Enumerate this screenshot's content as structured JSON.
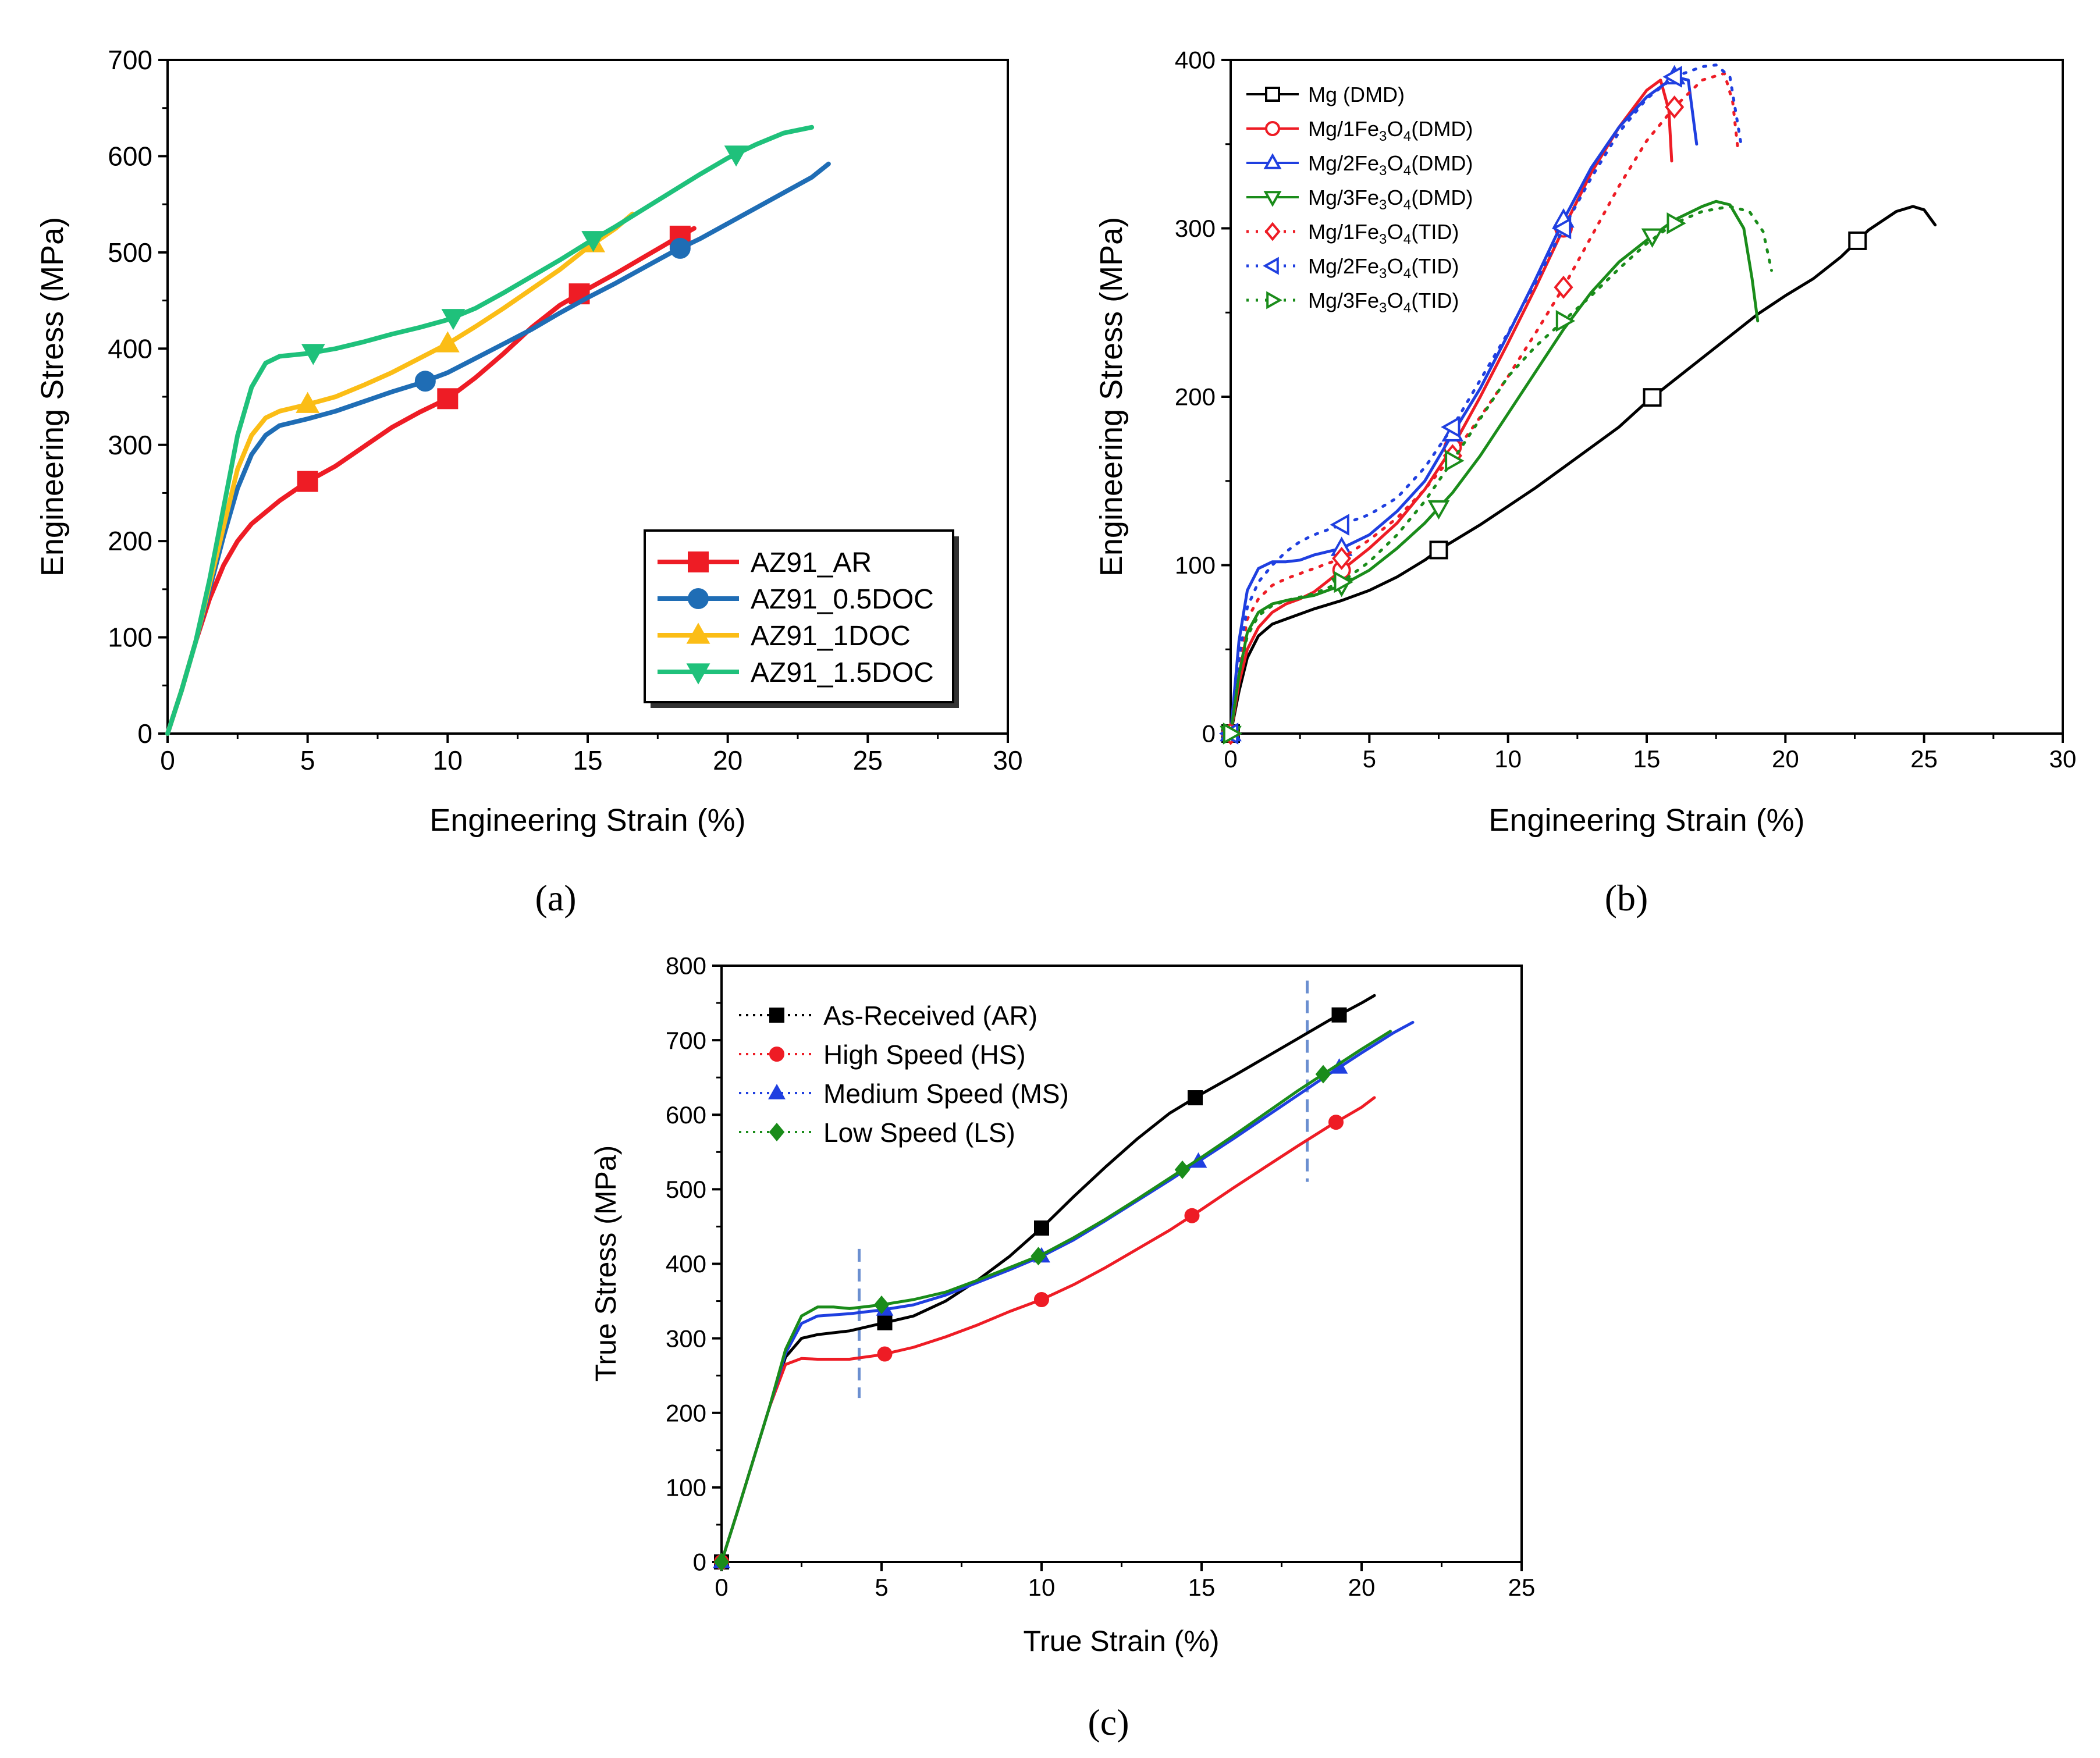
{
  "figure": {
    "panels": [
      {
        "label": "(a)"
      },
      {
        "label": "(b)"
      },
      {
        "label": "(c)"
      }
    ]
  },
  "chart_data": [
    {
      "id": "a",
      "type": "line",
      "xlabel": "Engineering Strain (%)",
      "ylabel": "Engineering Stress (MPa)",
      "xlim": [
        0,
        30
      ],
      "ylim": [
        0,
        700
      ],
      "xticks": [
        0,
        5,
        10,
        15,
        20,
        25,
        30
      ],
      "yticks": [
        0,
        100,
        200,
        300,
        400,
        500,
        600,
        700
      ],
      "legend_position": "bottom-right",
      "grid": false,
      "series": [
        {
          "name": "AZ91_AR",
          "color": "#ee1c25",
          "marker": "square",
          "x": [
            0,
            0.5,
            1,
            1.5,
            2,
            2.5,
            3,
            4,
            5,
            6,
            7,
            8,
            9,
            10,
            11,
            12,
            13,
            14,
            15,
            16,
            17,
            18,
            18.8
          ],
          "y": [
            0,
            45,
            95,
            140,
            175,
            200,
            218,
            242,
            262,
            278,
            298,
            318,
            334,
            348,
            370,
            395,
            422,
            445,
            462,
            478,
            495,
            512,
            525
          ],
          "markers_x": [
            5,
            10,
            14.7,
            18.3
          ]
        },
        {
          "name": "AZ91_0.5DOC",
          "color": "#1f6db5",
          "marker": "circle",
          "x": [
            0,
            0.5,
            1,
            1.5,
            2,
            2.5,
            3,
            3.5,
            4,
            5,
            6,
            7,
            8,
            9,
            10,
            11,
            12,
            13,
            14,
            15,
            16,
            17,
            18,
            19,
            20,
            21,
            22,
            23,
            23.6
          ],
          "y": [
            0,
            45,
            95,
            150,
            205,
            255,
            290,
            310,
            320,
            327,
            335,
            345,
            355,
            364,
            375,
            390,
            405,
            420,
            437,
            453,
            468,
            484,
            500,
            514,
            530,
            546,
            562,
            578,
            592
          ],
          "markers_x": [
            9.2,
            18.3
          ]
        },
        {
          "name": "AZ91_1DOC",
          "color": "#fbbd16",
          "marker": "triangle-up",
          "x": [
            0,
            0.5,
            1,
            1.5,
            2,
            2.5,
            3,
            3.5,
            4,
            5,
            6,
            7,
            8,
            9,
            10,
            11,
            12,
            13,
            14,
            15,
            16,
            16.6
          ],
          "y": [
            0,
            45,
            95,
            155,
            215,
            275,
            310,
            328,
            335,
            342,
            350,
            362,
            375,
            390,
            405,
            423,
            442,
            462,
            482,
            505,
            525,
            540
          ],
          "markers_x": [
            5,
            10,
            15.2
          ]
        },
        {
          "name": "AZ91_1.5DOC",
          "color": "#1fc17b",
          "marker": "triangle-down",
          "x": [
            0,
            0.5,
            1,
            1.5,
            2,
            2.5,
            3,
            3.5,
            4,
            5,
            6,
            7,
            8,
            9,
            10,
            11,
            12,
            13,
            14,
            15,
            16,
            17,
            18,
            19,
            20,
            21,
            22,
            23
          ],
          "y": [
            0,
            45,
            95,
            160,
            235,
            310,
            360,
            385,
            392,
            395,
            400,
            407,
            415,
            422,
            430,
            442,
            458,
            475,
            492,
            510,
            527,
            545,
            563,
            581,
            598,
            612,
            624,
            630
          ],
          "markers_x": [
            5.2,
            10.2,
            15.2,
            20.3
          ]
        }
      ]
    },
    {
      "id": "b",
      "type": "line",
      "xlabel": "Engineering Strain (%)",
      "ylabel": "Engineering Stress (MPa)",
      "xlim": [
        0,
        30
      ],
      "ylim": [
        0,
        400
      ],
      "xticks": [
        0,
        5,
        10,
        15,
        20,
        25,
        30
      ],
      "yticks": [
        0,
        100,
        200,
        300,
        400
      ],
      "legend_position": "top-left",
      "grid": false,
      "series": [
        {
          "name": "Mg (DMD)",
          "name_base": "Mg (DMD)",
          "name_sub": "",
          "name_tail": "",
          "color": "#000000",
          "marker": "square-open",
          "dash": false,
          "x": [
            0,
            0.3,
            0.6,
            1,
            1.5,
            2,
            3,
            4,
            5,
            6,
            7,
            7.5,
            9,
            10,
            11,
            12,
            13,
            14,
            15,
            16,
            17,
            18,
            19,
            20,
            21,
            22,
            23,
            24,
            24.6,
            25,
            25.4
          ],
          "y": [
            0,
            25,
            45,
            58,
            65,
            68,
            74,
            79,
            85,
            93,
            103,
            109,
            124,
            135,
            146,
            158,
            170,
            182,
            197,
            210,
            223,
            236,
            249,
            260,
            270,
            283,
            299,
            310,
            313,
            311,
            302
          ],
          "markers_x": [
            0,
            7.5,
            15.2,
            22.6
          ]
        },
        {
          "name": "Mg/1Fe3O4 (DMD)",
          "name_base": "Mg/1Fe",
          "name_sub": "3",
          "name_mid": "O",
          "name_sub2": "4",
          "name_tail": " (DMD)",
          "color": "#ee1c25",
          "marker": "circle-open",
          "dash": false,
          "x": [
            0,
            0.3,
            0.6,
            1,
            1.5,
            2,
            2.5,
            3,
            4,
            5,
            6,
            7,
            8,
            9,
            10,
            11,
            12,
            13,
            14,
            15,
            15.5,
            15.8,
            15.9
          ],
          "y": [
            0,
            30,
            50,
            63,
            72,
            77,
            80,
            84,
            97,
            110,
            125,
            145,
            170,
            200,
            232,
            265,
            300,
            333,
            360,
            382,
            388,
            370,
            340
          ],
          "markers_x": [
            0,
            4,
            8,
            12
          ]
        },
        {
          "name": "Mg/2Fe3O4 (DMD)",
          "name_base": "Mg/2Fe",
          "name_sub": "3",
          "name_mid": "O",
          "name_sub2": "4",
          "name_tail": " (DMD)",
          "color": "#1f3fe0",
          "marker": "triangle-up-open",
          "dash": false,
          "x": [
            0,
            0.3,
            0.6,
            1,
            1.5,
            2,
            2.5,
            3,
            4,
            5,
            6,
            7,
            8,
            9,
            10,
            11,
            12,
            13,
            14,
            15,
            16,
            16.5,
            16.8
          ],
          "y": [
            0,
            55,
            85,
            98,
            102,
            102,
            103,
            106,
            110,
            118,
            132,
            150,
            178,
            205,
            237,
            270,
            305,
            336,
            360,
            378,
            390,
            388,
            350
          ],
          "markers_x": [
            0,
            4,
            8,
            12,
            16
          ]
        },
        {
          "name": "Mg/3Fe3O4 (DMD)",
          "name_base": "Mg/3Fe",
          "name_sub": "3",
          "name_mid": "O",
          "name_sub2": "4",
          "name_tail": " (DMD)",
          "color": "#1a8c1a",
          "marker": "triangle-down-open",
          "dash": false,
          "x": [
            0,
            0.3,
            0.6,
            1,
            1.5,
            2,
            3,
            4,
            5,
            6,
            7,
            8,
            9,
            10,
            11,
            12,
            13,
            14,
            15,
            16,
            17,
            17.5,
            18,
            18.5,
            18.8,
            19
          ],
          "y": [
            0,
            35,
            60,
            72,
            77,
            79,
            82,
            88,
            97,
            110,
            125,
            143,
            165,
            190,
            215,
            240,
            262,
            280,
            293,
            305,
            313,
            316,
            314,
            300,
            270,
            245
          ],
          "markers_x": [
            0,
            4,
            7.5,
            15.2
          ]
        },
        {
          "name": "Mg/1Fe3O4 (TID)",
          "name_base": "Mg/1Fe",
          "name_sub": "3",
          "name_mid": "O",
          "name_sub2": "4",
          "name_tail": " (TID)",
          "color": "#ee1c25",
          "marker": "diamond-open",
          "dash": true,
          "x": [
            0,
            0.3,
            0.6,
            1,
            1.5,
            2,
            3,
            4,
            5,
            6,
            7,
            8,
            9,
            10,
            11,
            12,
            13,
            14,
            15,
            16,
            17,
            17.8,
            18.1,
            18.3
          ],
          "y": [
            0,
            40,
            68,
            80,
            88,
            92,
            98,
            104,
            115,
            128,
            145,
            165,
            188,
            212,
            238,
            265,
            295,
            325,
            352,
            372,
            388,
            392,
            375,
            345
          ],
          "markers_x": [
            0,
            4,
            8,
            12,
            16
          ]
        },
        {
          "name": "Mg/2Fe3O4 (TID)",
          "name_base": "Mg/2Fe",
          "name_sub": "3",
          "name_mid": "O",
          "name_sub2": "4",
          "name_tail": " (TID)",
          "color": "#1f3fe0",
          "marker": "triangle-left-open",
          "dash": true,
          "x": [
            0,
            0.3,
            0.6,
            1,
            1.5,
            2,
            2.5,
            3,
            4,
            5,
            6,
            7,
            8,
            9,
            10,
            11,
            12,
            13,
            14,
            15,
            16,
            17,
            17.5,
            18,
            18.4
          ],
          "y": [
            0,
            45,
            75,
            90,
            100,
            108,
            114,
            118,
            124,
            130,
            140,
            158,
            182,
            210,
            238,
            268,
            300,
            330,
            357,
            377,
            390,
            396,
            397,
            390,
            350
          ],
          "markers_x": [
            0,
            4,
            8,
            12,
            16
          ]
        },
        {
          "name": "Mg/3Fe3O4 (TID)",
          "name_base": "Mg/3Fe",
          "name_sub": "3",
          "name_mid": "O",
          "name_sub2": "4",
          "name_tail": " (TID)",
          "color": "#1a8c1a",
          "marker": "triangle-right-open",
          "dash": true,
          "x": [
            0,
            0.3,
            0.6,
            1,
            1.5,
            2,
            3,
            4,
            5,
            6,
            7,
            8,
            9,
            10,
            11,
            12,
            13,
            14,
            15,
            16,
            17,
            18,
            18.7,
            19.2,
            19.5
          ],
          "y": [
            0,
            35,
            58,
            70,
            76,
            79,
            83,
            90,
            102,
            118,
            138,
            162,
            187,
            212,
            230,
            245,
            260,
            276,
            291,
            303,
            310,
            313,
            310,
            298,
            275
          ],
          "markers_x": [
            0,
            4,
            8,
            12,
            16
          ]
        }
      ]
    },
    {
      "id": "c",
      "type": "line",
      "xlabel": "True Strain (%)",
      "ylabel": "True Stress (MPa)",
      "xlim": [
        0,
        25
      ],
      "ylim": [
        0,
        800
      ],
      "xticks": [
        0,
        5,
        10,
        15,
        20,
        25
      ],
      "yticks": [
        0,
        100,
        200,
        300,
        400,
        500,
        600,
        700,
        800
      ],
      "legend_position": "top-left",
      "grid": false,
      "vlines_x": [
        4.3,
        18.3
      ],
      "vlines_color": "#6b8fd0",
      "series": [
        {
          "name": "As-Received (AR)",
          "color": "#000000",
          "marker": "square",
          "x": [
            0,
            0.5,
            1,
            1.5,
            2,
            2.5,
            3,
            4,
            5,
            6,
            7,
            8,
            9,
            10,
            11,
            12,
            13,
            14,
            15,
            16,
            17,
            18,
            19,
            20,
            20.4
          ],
          "y": [
            0,
            68,
            138,
            208,
            275,
            300,
            305,
            310,
            320,
            330,
            350,
            378,
            410,
            448,
            490,
            530,
            568,
            602,
            628,
            652,
            677,
            702,
            727,
            750,
            760
          ],
          "markers_x": [
            0,
            5.1,
            10,
            14.8,
            19.3
          ]
        },
        {
          "name": "High Speed (HS)",
          "color": "#ee1c25",
          "marker": "circle",
          "x": [
            0,
            0.5,
            1,
            1.5,
            2,
            2.5,
            3,
            4,
            5,
            6,
            7,
            8,
            9,
            10,
            11,
            12,
            13,
            14,
            15,
            16,
            17,
            18,
            19,
            20,
            20.4
          ],
          "y": [
            0,
            68,
            138,
            208,
            265,
            273,
            272,
            272,
            278,
            288,
            302,
            318,
            336,
            352,
            372,
            395,
            420,
            445,
            473,
            502,
            530,
            558,
            585,
            610,
            623
          ],
          "markers_x": [
            0,
            5.1,
            10,
            14.7,
            19.2
          ]
        },
        {
          "name": "Medium Speed (MS)",
          "color": "#1f3fe0",
          "marker": "triangle-up",
          "x": [
            0,
            0.5,
            1,
            1.5,
            2,
            2.5,
            3,
            4,
            5,
            6,
            7,
            8,
            9,
            10,
            11,
            12,
            13,
            14,
            15,
            16,
            17,
            18,
            19,
            20,
            21,
            21.6
          ],
          "y": [
            0,
            68,
            138,
            208,
            280,
            320,
            330,
            333,
            338,
            345,
            358,
            375,
            392,
            410,
            432,
            458,
            485,
            512,
            540,
            568,
            597,
            626,
            655,
            683,
            710,
            724
          ],
          "markers_x": [
            0,
            5.1,
            10,
            14.9,
            19.3
          ]
        },
        {
          "name": "Low Speed (LS)",
          "color": "#1a8c1a",
          "marker": "diamond",
          "x": [
            0,
            0.5,
            1,
            1.5,
            2,
            2.5,
            3,
            3.5,
            4,
            5,
            6,
            7,
            8,
            9,
            10,
            11,
            12,
            13,
            14,
            15,
            16,
            17,
            18,
            19,
            20,
            20.9
          ],
          "y": [
            0,
            68,
            138,
            208,
            285,
            330,
            342,
            342,
            340,
            345,
            352,
            362,
            378,
            395,
            412,
            435,
            460,
            487,
            515,
            543,
            572,
            602,
            632,
            660,
            688,
            712
          ],
          "markers_x": [
            0,
            5,
            9.9,
            14.4,
            18.8
          ]
        }
      ]
    }
  ]
}
